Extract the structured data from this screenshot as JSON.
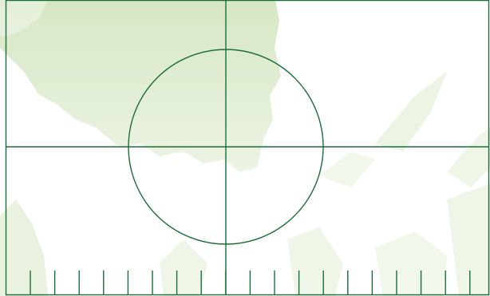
{
  "viewfinder": {
    "line_color": "#1a6e38",
    "backdrop_tint": "#c9dfb0",
    "backdrop_style": "faint green foliage / leaf-like pattern"
  },
  "ruler": {
    "tick_count": 20
  }
}
